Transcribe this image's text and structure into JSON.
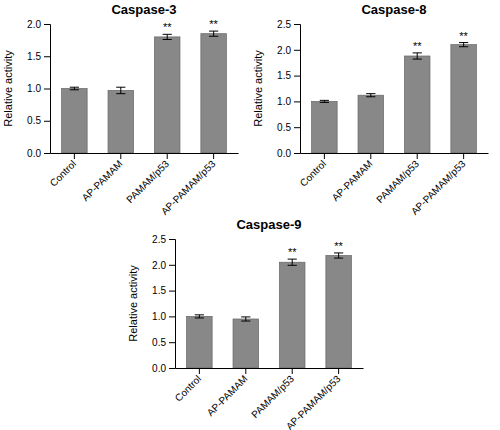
{
  "chart_data": [
    {
      "type": "bar",
      "title": "Caspase-3",
      "categories": [
        "Control",
        "AP-PAMAM",
        "PAMAM/p53",
        "AP-PAMAM/p53"
      ],
      "values": [
        1.0,
        0.97,
        1.8,
        1.85
      ],
      "errors": [
        0.02,
        0.05,
        0.04,
        0.04
      ],
      "annotations": [
        {
          "category": "PAMAM/p53",
          "text": "**"
        },
        {
          "category": "AP-PAMAM/p53",
          "text": "**"
        }
      ],
      "ylabel": "Relative activity",
      "color": "#888888",
      "ylim": [
        0,
        2.0
      ],
      "yticks": [
        {
          "value": 0,
          "label": "0.0"
        },
        0.5,
        {
          "value": 1,
          "label": "1.0"
        },
        1.5,
        {
          "value": 2,
          "label": "2.0"
        }
      ],
      "grid": false
    },
    {
      "type": "bar",
      "title": "Caspase-8",
      "categories": [
        "Control",
        "AP-PAMAM",
        "PAMAM/p53",
        "AP-PAMAM/p53"
      ],
      "values": [
        1.0,
        1.12,
        1.88,
        2.1
      ],
      "errors": [
        0.02,
        0.03,
        0.06,
        0.04
      ],
      "annotations": [
        {
          "category": "PAMAM/p53",
          "text": "**"
        },
        {
          "category": "AP-PAMAM/p53",
          "text": "**"
        }
      ],
      "ylabel": "Relative activity",
      "color": "#888888",
      "ylim": [
        0,
        2.5
      ],
      "yticks": [
        {
          "value": 0,
          "label": "0.0"
        },
        0.5,
        {
          "value": 1,
          "label": "1.0"
        },
        1.5,
        {
          "value": 2,
          "label": "2.0"
        },
        2.5
      ],
      "grid": false
    },
    {
      "type": "bar",
      "title": "Caspase-9",
      "categories": [
        "Control",
        "AP-PAMAM",
        "PAMAM/p53",
        "AP-PAMAM/p53"
      ],
      "values": [
        1.0,
        0.95,
        2.05,
        2.18
      ],
      "errors": [
        0.03,
        0.04,
        0.06,
        0.05
      ],
      "annotations": [
        {
          "category": "PAMAM/p53",
          "text": "**"
        },
        {
          "category": "AP-PAMAM/p53",
          "text": "**"
        }
      ],
      "ylabel": "Relative activity",
      "color": "#888888",
      "ylim": [
        0,
        2.5
      ],
      "yticks": [
        {
          "value": 0,
          "label": "0.0"
        },
        0.5,
        {
          "value": 1,
          "label": "1.0"
        },
        1.5,
        {
          "value": 2,
          "label": "2.0"
        },
        2.5
      ],
      "grid": false
    }
  ]
}
